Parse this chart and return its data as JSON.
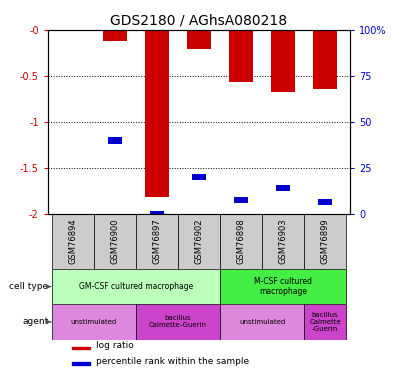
{
  "title": "GDS2180 / AGhsA080218",
  "samples": [
    "GSM76894",
    "GSM76900",
    "GSM76897",
    "GSM76902",
    "GSM76898",
    "GSM76903",
    "GSM76899"
  ],
  "log_ratios": [
    0.0,
    -0.12,
    -1.82,
    -0.21,
    -0.57,
    -0.67,
    -0.64
  ],
  "percentile_ranks_scaled": [
    null,
    -1.2,
    -2.0,
    -1.6,
    -1.85,
    -1.72,
    -1.87
  ],
  "ylim_left": [
    -2.0,
    0.0
  ],
  "ylim_right": [
    0,
    100
  ],
  "yticks_left": [
    0.0,
    -0.5,
    -1.0,
    -1.5,
    -2.0
  ],
  "yticks_left_labels": [
    "-0",
    "-0.5",
    "-1",
    "-1.5",
    "-2"
  ],
  "yticks_right": [
    0,
    25,
    50,
    75,
    100
  ],
  "yticks_right_labels": [
    "0",
    "25",
    "50",
    "75",
    "100%"
  ],
  "bar_color": "#cc0000",
  "pct_color": "#0000cc",
  "bar_width": 0.55,
  "pct_bar_height": 0.07,
  "cell_type_groups": [
    {
      "label": "GM-CSF cultured macrophage",
      "start": 0,
      "end": 3,
      "color": "#bbffbb"
    },
    {
      "label": "M-CSF cultured\nmacrophage",
      "start": 4,
      "end": 6,
      "color": "#44ee44"
    }
  ],
  "agent_groups": [
    {
      "label": "unstimulated",
      "start": 0,
      "end": 1,
      "color": "#dd88dd"
    },
    {
      "label": "bacillus\nCalmette-Guerin",
      "start": 2,
      "end": 3,
      "color": "#cc44cc"
    },
    {
      "label": "unstimulated",
      "start": 4,
      "end": 5,
      "color": "#dd88dd"
    },
    {
      "label": "bacillus\nCalmette\n-Guerin",
      "start": 6,
      "end": 6,
      "color": "#cc44cc"
    }
  ],
  "cell_type_label": "cell type",
  "agent_label": "agent",
  "legend_items": [
    {
      "label": "log ratio",
      "color": "#cc0000"
    },
    {
      "label": "percentile rank within the sample",
      "color": "#0000cc"
    }
  ],
  "tick_color_left": "#cc0000",
  "tick_color_right": "#0000cc",
  "title_fontsize": 10,
  "tick_fontsize": 7,
  "sample_fontsize": 6
}
